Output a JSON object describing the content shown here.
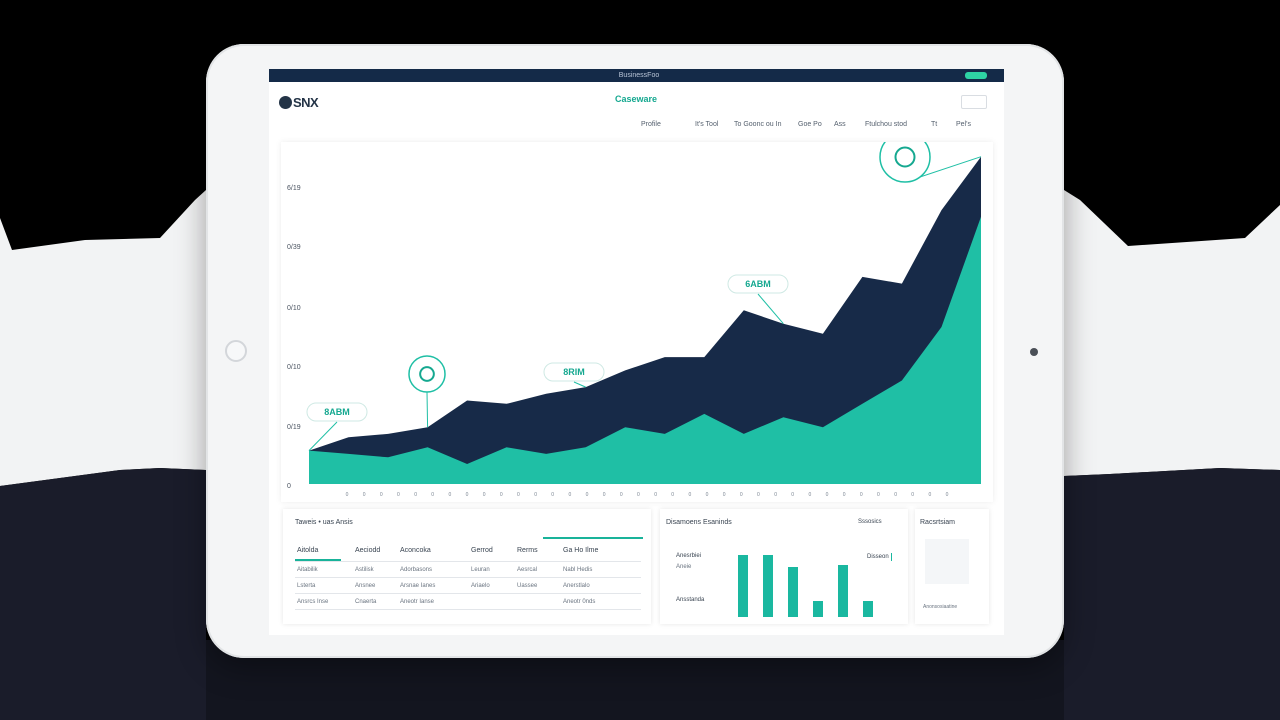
{
  "header": {
    "logo_text": "SNX",
    "title": "Caseware",
    "nav": [
      "Profile",
      "It's Tool",
      "To Goonc ou In",
      "Goe Po",
      "Ass",
      "Ftulchou stod",
      "Tt",
      "Pel's"
    ]
  },
  "status_bar": {
    "title": "BusinessFoo"
  },
  "chart_data": {
    "type": "area",
    "title": "",
    "xlabel": "",
    "ylabel": "",
    "y_ticks": [
      "6/19",
      "0/39",
      "0/10",
      "0/10",
      "0/19",
      "0"
    ],
    "x_tick_count": 36,
    "x_tick_label": "0",
    "series": [
      {
        "color": "#172a48",
        "values": [
          10,
          14,
          15,
          17,
          25,
          24,
          27,
          29,
          34,
          38,
          38,
          52,
          48,
          45,
          62,
          60,
          82,
          98
        ]
      },
      {
        "color": "#1fbfa5",
        "values": [
          10,
          9,
          8,
          11,
          6,
          11,
          9,
          11,
          17,
          15,
          21,
          15,
          20,
          17,
          24,
          31,
          47,
          80
        ]
      }
    ],
    "callouts": [
      {
        "kind": "pill",
        "label": "8ABM",
        "at": 0
      },
      {
        "kind": "icon",
        "icon": "chart-icon",
        "at": 3
      },
      {
        "kind": "pill",
        "label": "8RIM",
        "at": 7
      },
      {
        "kind": "pill",
        "label": "6ABM",
        "at": 12
      },
      {
        "kind": "icon",
        "icon": "money-icon",
        "at": 17
      }
    ],
    "grid": false,
    "legend": "none"
  },
  "table_panel": {
    "heading": "Taweis • uas Ansis",
    "columns": [
      "Aitolda",
      "Aeciodd",
      "Aconcoka",
      "Gerrod",
      "Rerms",
      "Ga Ho Ilme"
    ],
    "rows": [
      [
        "Aitabilik",
        "Astilisk",
        "Adorbasons",
        "Leuran",
        "Aesrcal",
        "Nabl Hedis"
      ],
      [
        "Lsterta",
        "Ansnee",
        "Arsnae Ianes",
        "Ariaelo",
        "Uassee",
        "Anerstlalo"
      ],
      [
        "Ansrcs Inse",
        "Cnaerta",
        "Aneotr Ianse",
        "",
        "",
        "Aneotr 0nds"
      ]
    ]
  },
  "bars_panel": {
    "heading": "Disamoens Esaninds",
    "right_label": "Sssosics",
    "left_labels": [
      "Anesrbiei",
      "Aneie",
      "Ansstanda"
    ],
    "badge": "Disseon",
    "values": [
      78,
      78,
      62,
      20,
      65,
      20
    ]
  },
  "side_panel": {
    "heading": "Racsrtsiam",
    "footer": "Anonsosiaatine"
  }
}
